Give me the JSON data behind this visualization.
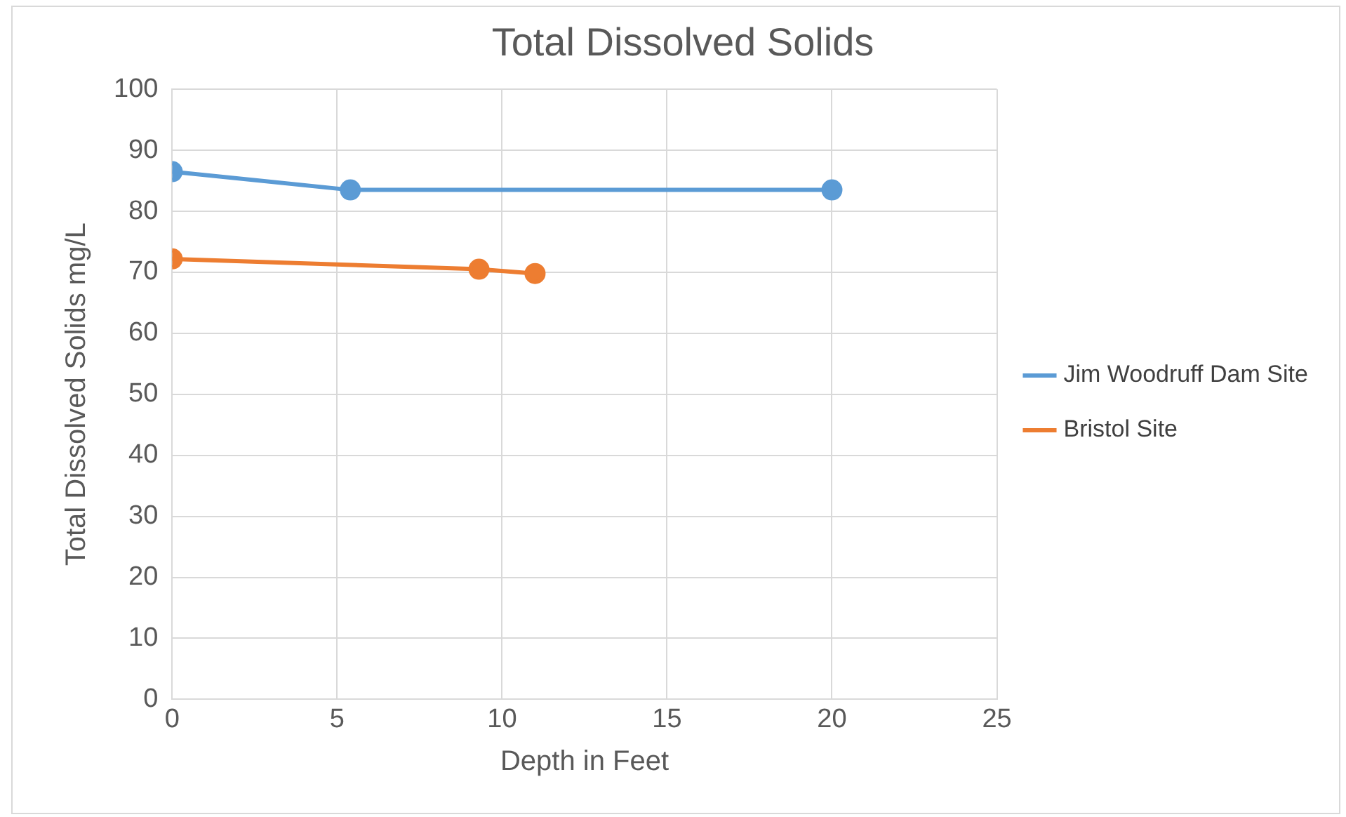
{
  "chart_data": {
    "type": "line",
    "title": "Total Dissolved Solids",
    "xlabel": "Depth in Feet",
    "ylabel": "Total Dissolved Solids mg/L",
    "series": [
      {
        "name": "Jim Woodruff Dam Site",
        "color": "#5b9bd5",
        "x": [
          0,
          5.4,
          20
        ],
        "values": [
          86.5,
          83.5,
          83.5
        ]
      },
      {
        "name": "Bristol Site",
        "color": "#ed7d31",
        "x": [
          0,
          9.3,
          11
        ],
        "values": [
          72.2,
          70.5,
          69.8
        ]
      }
    ],
    "xlim": [
      0,
      25
    ],
    "xticks": [
      0,
      5,
      10,
      15,
      20,
      25
    ],
    "ylim": [
      0,
      100
    ],
    "yticks": [
      0,
      10,
      20,
      30,
      40,
      50,
      60,
      70,
      80,
      90,
      100
    ],
    "grid": true,
    "legend": "right",
    "marker": "circle",
    "line_style": "solid"
  }
}
